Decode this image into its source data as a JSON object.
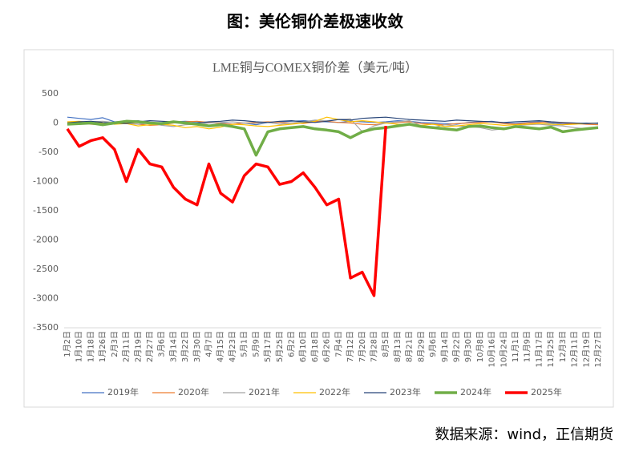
{
  "header": "图：美伦铜价差极速收敛",
  "source": "数据来源：wind，正信期货",
  "chart_data": {
    "type": "line",
    "title": "LME铜与COMEX铜价差（美元/吨）",
    "categories": [
      "1月2日",
      "1月10日",
      "1月18日",
      "1月26日",
      "2月3日",
      "2月11日",
      "2月19日",
      "2月27日",
      "3月6日",
      "3月14日",
      "3月22日",
      "3月30日",
      "4月7日",
      "4月15日",
      "4月23日",
      "5月1日",
      "5月9日",
      "5月17日",
      "5月25日",
      "6月2日",
      "6月10日",
      "6月18日",
      "6月26日",
      "7月4日",
      "7月12日",
      "7月20日",
      "7月28日",
      "8月5日",
      "8月13日",
      "8月21日",
      "8月29日",
      "9月6日",
      "9月14日",
      "9月22日",
      "9月30日",
      "10月8日",
      "10月16日",
      "10月24日",
      "11月1日",
      "11月9日",
      "11月17日",
      "11月25日",
      "12月3日",
      "12月11日",
      "12月19日",
      "12月27日"
    ],
    "series": [
      {
        "name": "2019年",
        "color": "#4472c4",
        "width": 1.2,
        "values": [
          100,
          80,
          60,
          90,
          20,
          30,
          40,
          0,
          10,
          20,
          30,
          20,
          10,
          0,
          -20,
          0,
          -30,
          10,
          20,
          30,
          40,
          30,
          20,
          10,
          30,
          20,
          10,
          20,
          40,
          30,
          10,
          0,
          -10,
          -20,
          10,
          20,
          30,
          0,
          -10,
          10,
          20,
          0,
          -20,
          -10,
          0,
          -10
        ]
      },
      {
        "name": "2020年",
        "color": "#ed7d31",
        "width": 1.2,
        "values": [
          10,
          20,
          -20,
          -30,
          0,
          10,
          -20,
          -40,
          -30,
          0,
          20,
          30,
          10,
          -10,
          -20,
          0,
          10,
          20,
          10,
          0,
          -10,
          20,
          30,
          10,
          0,
          -20,
          -30,
          0,
          10,
          20,
          -10,
          -20,
          -30,
          -10,
          0,
          10,
          20,
          -10,
          -20,
          0,
          10,
          20,
          0,
          -10,
          -20,
          -30
        ]
      },
      {
        "name": "2021年",
        "color": "#a5a5a5",
        "width": 1.2,
        "values": [
          0,
          -10,
          20,
          30,
          10,
          -10,
          -20,
          0,
          -40,
          -60,
          -30,
          -20,
          0,
          10,
          20,
          0,
          -10,
          10,
          -20,
          0,
          20,
          50,
          40,
          60,
          70,
          -150,
          -50,
          0,
          20,
          40,
          -50,
          -80,
          -30,
          -50,
          -60,
          -80,
          -120,
          -100,
          -50,
          -30,
          -20,
          -40,
          -50,
          -80,
          -100,
          -70
        ]
      },
      {
        "name": "2022年",
        "color": "#ffc000",
        "width": 1.2,
        "values": [
          20,
          30,
          10,
          0,
          -20,
          -10,
          -50,
          -30,
          -20,
          -40,
          -80,
          -60,
          -100,
          -70,
          -20,
          -30,
          -50,
          -60,
          -40,
          -20,
          0,
          30,
          100,
          60,
          20,
          40,
          20,
          0,
          -20,
          -30,
          -40,
          -20,
          -60,
          -50,
          -30,
          -10,
          -20,
          -40,
          -30,
          -20,
          -10,
          -20,
          -30,
          -20,
          -10,
          0
        ]
      },
      {
        "name": "2023年",
        "color": "#264478",
        "width": 1.2,
        "values": [
          0,
          20,
          30,
          10,
          0,
          -10,
          20,
          40,
          30,
          20,
          10,
          0,
          20,
          30,
          50,
          40,
          20,
          10,
          30,
          40,
          20,
          10,
          30,
          60,
          50,
          80,
          90,
          100,
          80,
          60,
          50,
          40,
          30,
          50,
          40,
          30,
          20,
          10,
          20,
          30,
          40,
          20,
          10,
          0,
          -10,
          0
        ]
      },
      {
        "name": "2024年",
        "color": "#70ad47",
        "width": 3.5,
        "values": [
          -20,
          -10,
          0,
          -30,
          0,
          30,
          20,
          0,
          -10,
          20,
          0,
          -20,
          -50,
          -30,
          -60,
          -100,
          -550,
          -150,
          -100,
          -80,
          -60,
          -100,
          -120,
          -150,
          -250,
          -150,
          -100,
          -80,
          -50,
          -20,
          -60,
          -80,
          -100,
          -120,
          -60,
          -50,
          -80,
          -100,
          -60,
          -80,
          -100,
          -70,
          -150,
          -120,
          -100,
          -80
        ]
      },
      {
        "name": "2025年",
        "color": "#ff0000",
        "width": 3.5,
        "values": [
          -100,
          -400,
          -300,
          -250,
          -450,
          -1000,
          -450,
          -700,
          -750,
          -1100,
          -1300,
          -1400,
          -700,
          -1200,
          -1350,
          -900,
          -700,
          -750,
          -1050,
          -1000,
          -850,
          -1100,
          -1400,
          -1300,
          -2650,
          -2550,
          -2950,
          -50,
          null,
          null,
          null,
          null,
          null,
          null,
          null,
          null,
          null,
          null,
          null,
          null,
          null,
          null,
          null,
          null,
          null,
          null
        ]
      }
    ],
    "ylim": [
      -3500,
      500
    ],
    "yticks": [
      500,
      0,
      -500,
      -1000,
      -1500,
      -2000,
      -2500,
      -3000,
      -3500
    ],
    "grid": false,
    "legend": "bottom"
  }
}
